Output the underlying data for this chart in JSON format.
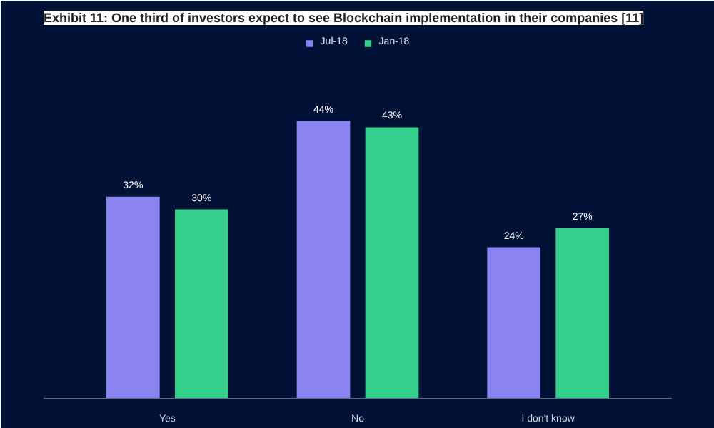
{
  "chart_data": {
    "type": "bar",
    "title": "Exhibit 11: One third of investors expect to see Blockchain implementation in their companies [11]",
    "categories": [
      "Yes",
      "No",
      "I don't know"
    ],
    "series": [
      {
        "name": "Jul-18",
        "color": "#8a84f0",
        "values": [
          32,
          44,
          24
        ],
        "value_labels": [
          "32%",
          "44%",
          "24%"
        ]
      },
      {
        "name": "Jan-18",
        "color": "#34d08c",
        "values": [
          30,
          43,
          27
        ],
        "value_labels": [
          "30%",
          "43%",
          "27%"
        ]
      }
    ],
    "legend": "top",
    "grid": false
  }
}
